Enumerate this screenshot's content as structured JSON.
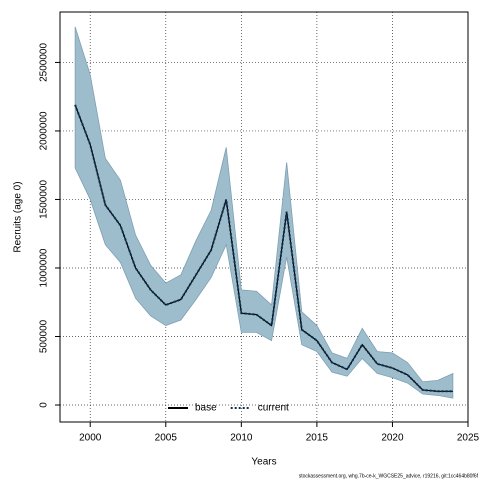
{
  "chart_data": {
    "type": "line",
    "x_label": "Years",
    "y_label": "Recruits (age 0)",
    "footer": "stockassessment.org, whg.7b-ce-k_WGCSE25_advice, r19216, git:1cc464b80f6f",
    "x": [
      1999,
      2000,
      2001,
      2002,
      2003,
      2004,
      2005,
      2006,
      2007,
      2008,
      2009,
      2010,
      2011,
      2012,
      2013,
      2014,
      2015,
      2016,
      2017,
      2018,
      2019,
      2020,
      2021,
      2022,
      2023,
      2024
    ],
    "series": [
      {
        "name": "base",
        "color": "#000000",
        "values": [
          2190000,
          1900000,
          1460000,
          1310000,
          1000000,
          840000,
          730000,
          770000,
          950000,
          1130000,
          1500000,
          670000,
          660000,
          580000,
          1410000,
          550000,
          470000,
          310000,
          260000,
          440000,
          300000,
          270000,
          220000,
          110000,
          100000,
          100000
        ]
      },
      {
        "name": "current",
        "color": "#0d2f4f",
        "band_color": "#9dbdcd",
        "values": [
          2190000,
          1900000,
          1460000,
          1310000,
          1000000,
          840000,
          730000,
          770000,
          950000,
          1130000,
          1500000,
          670000,
          660000,
          580000,
          1410000,
          550000,
          470000,
          310000,
          260000,
          440000,
          300000,
          270000,
          220000,
          110000,
          100000,
          100000
        ],
        "upper": [
          2760000,
          2410000,
          1800000,
          1640000,
          1240000,
          1020000,
          890000,
          950000,
          1200000,
          1420000,
          1880000,
          840000,
          830000,
          730000,
          1770000,
          680000,
          580000,
          380000,
          340000,
          560000,
          390000,
          380000,
          310000,
          170000,
          180000,
          230000
        ],
        "lower": [
          1730000,
          1500000,
          1170000,
          1040000,
          780000,
          650000,
          580000,
          620000,
          770000,
          930000,
          1170000,
          530000,
          530000,
          470000,
          1080000,
          440000,
          390000,
          240000,
          210000,
          340000,
          230000,
          200000,
          160000,
          80000,
          70000,
          50000
        ]
      }
    ],
    "xlim": [
      1998,
      2025
    ],
    "xticks": [
      2000,
      2005,
      2010,
      2015,
      2020,
      2025
    ],
    "ylim": [
      -124000,
      2868000
    ],
    "yticks": [
      0,
      500000,
      1000000,
      1500000,
      2000000,
      2500000
    ],
    "grid": true,
    "legend": "bottom"
  }
}
